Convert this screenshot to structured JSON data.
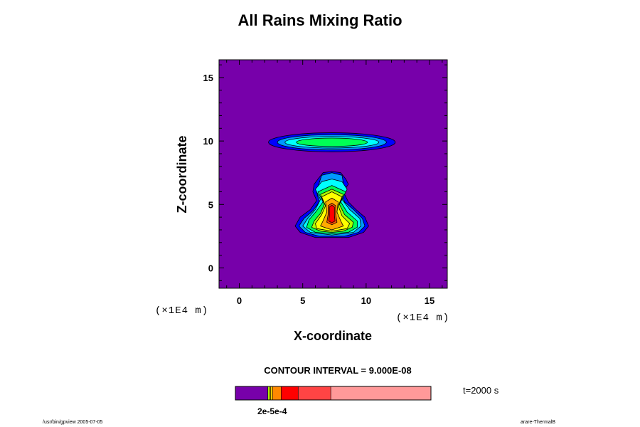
{
  "title": "All Rains Mixing Ratio",
  "chart_data": {
    "type": "heatmap",
    "title": "All Rains Mixing Ratio",
    "xlabel": "X-coordinate",
    "ylabel": "Z-coordinate",
    "x_unit": "(×1E4 m)",
    "z_unit": "(×1E4 m)",
    "xlim": [
      -1.6,
      16.4
    ],
    "ylim": [
      -1.6,
      16.4
    ],
    "x_ticks": [
      0,
      5,
      10,
      15
    ],
    "y_ticks": [
      0,
      5,
      10,
      15
    ],
    "contour_interval": "CONTOUR INTERVAL = 9.000E-08",
    "time": "t=2000 s",
    "colorbar_tick_label": "2e-5e-4",
    "background_color": "#7700aa",
    "levels": [
      "#7700aa",
      "#0000ff",
      "#0099ff",
      "#00ffff",
      "#00ff55",
      "#aaff00",
      "#ffff00",
      "#ffaa00",
      "#ff5500",
      "#ff0000"
    ],
    "features": [
      {
        "name": "upper cloud",
        "center": [
          7.3,
          9.9
        ],
        "levels": [
          {
            "color": "#0000ff",
            "rx": 5.0,
            "rz": 0.75
          },
          {
            "color": "#0099ff",
            "rx": 4.3,
            "rz": 0.6
          },
          {
            "color": "#00ffff",
            "rx": 3.7,
            "rz": 0.45
          },
          {
            "color": "#00ff55",
            "rx": 2.8,
            "rz": 0.33
          }
        ]
      },
      {
        "name": "lower rain column",
        "center": [
          7.3,
          5.0
        ],
        "levels": [
          {
            "color": "#0000ff",
            "points": [
              [
                6.2,
                7.0
              ],
              [
                6.6,
                7.5
              ],
              [
                7.3,
                7.6
              ],
              [
                8.0,
                7.5
              ],
              [
                8.4,
                7.0
              ],
              [
                8.6,
                6.6
              ],
              [
                8.2,
                6.0
              ],
              [
                8.6,
                5.2
              ],
              [
                9.2,
                4.6
              ],
              [
                9.9,
                4.0
              ],
              [
                10.2,
                3.3
              ],
              [
                9.8,
                2.8
              ],
              [
                8.6,
                2.4
              ],
              [
                6.0,
                2.4
              ],
              [
                4.8,
                2.8
              ],
              [
                4.4,
                3.3
              ],
              [
                4.8,
                4.0
              ],
              [
                5.6,
                4.6
              ],
              [
                6.1,
                5.3
              ],
              [
                5.8,
                6.0
              ],
              [
                5.9,
                6.6
              ]
            ]
          },
          {
            "color": "#0099ff",
            "points": [
              [
                6.5,
                7.3
              ],
              [
                7.3,
                7.5
              ],
              [
                8.1,
                7.3
              ],
              [
                8.2,
                6.7
              ],
              [
                8.0,
                6.0
              ],
              [
                8.3,
                5.2
              ],
              [
                9.0,
                4.6
              ],
              [
                9.7,
                3.9
              ],
              [
                9.9,
                3.3
              ],
              [
                9.4,
                2.8
              ],
              [
                8.3,
                2.5
              ],
              [
                6.3,
                2.5
              ],
              [
                5.2,
                2.8
              ],
              [
                4.7,
                3.3
              ],
              [
                5.1,
                3.9
              ],
              [
                5.8,
                4.5
              ],
              [
                6.3,
                5.2
              ],
              [
                6.1,
                6.0
              ],
              [
                6.3,
                6.7
              ]
            ]
          },
          {
            "color": "#00ffff",
            "points": [
              [
                6.0,
                6.2
              ],
              [
                6.5,
                6.8
              ],
              [
                7.3,
                7.0
              ],
              [
                8.1,
                6.8
              ],
              [
                8.5,
                6.2
              ],
              [
                8.1,
                5.4
              ],
              [
                8.7,
                4.6
              ],
              [
                9.5,
                3.9
              ],
              [
                9.6,
                3.3
              ],
              [
                9.0,
                2.8
              ],
              [
                7.3,
                2.6
              ],
              [
                5.6,
                2.8
              ],
              [
                5.0,
                3.3
              ],
              [
                5.4,
                3.9
              ],
              [
                6.0,
                4.6
              ],
              [
                6.4,
                5.4
              ]
            ]
          },
          {
            "color": "#00ff55",
            "points": [
              [
                6.2,
                6.0
              ],
              [
                7.3,
                6.5
              ],
              [
                8.4,
                6.0
              ],
              [
                8.0,
                5.2
              ],
              [
                8.5,
                4.4
              ],
              [
                9.3,
                3.7
              ],
              [
                9.3,
                3.2
              ],
              [
                8.6,
                2.8
              ],
              [
                7.3,
                2.7
              ],
              [
                6.0,
                2.8
              ],
              [
                5.3,
                3.2
              ],
              [
                5.5,
                3.8
              ],
              [
                6.1,
                4.5
              ],
              [
                6.6,
                5.2
              ]
            ]
          },
          {
            "color": "#aaff00",
            "points": [
              [
                6.4,
                5.8
              ],
              [
                7.3,
                6.2
              ],
              [
                8.2,
                5.8
              ],
              [
                7.9,
                5.0
              ],
              [
                8.3,
                4.2
              ],
              [
                9.0,
                3.6
              ],
              [
                8.9,
                3.2
              ],
              [
                8.2,
                2.9
              ],
              [
                7.3,
                2.8
              ],
              [
                6.4,
                2.9
              ],
              [
                5.7,
                3.2
              ],
              [
                5.9,
                3.7
              ],
              [
                6.4,
                4.3
              ],
              [
                6.7,
                5.0
              ]
            ]
          },
          {
            "color": "#ffff00",
            "points": [
              [
                6.5,
                5.6
              ],
              [
                7.3,
                6.0
              ],
              [
                8.1,
                5.6
              ],
              [
                7.8,
                4.9
              ],
              [
                8.1,
                4.1
              ],
              [
                8.7,
                3.5
              ],
              [
                8.5,
                3.1
              ],
              [
                7.3,
                2.9
              ],
              [
                6.1,
                3.1
              ],
              [
                6.0,
                3.5
              ],
              [
                6.5,
                4.2
              ],
              [
                6.8,
                4.9
              ]
            ]
          },
          {
            "color": "#ffaa00",
            "points": [
              [
                6.8,
                5.2
              ],
              [
                7.3,
                5.5
              ],
              [
                7.8,
                5.2
              ],
              [
                7.7,
                4.4
              ],
              [
                8.0,
                3.7
              ],
              [
                8.2,
                3.3
              ],
              [
                7.3,
                3.0
              ],
              [
                6.4,
                3.3
              ],
              [
                6.6,
                3.7
              ],
              [
                6.9,
                4.4
              ]
            ]
          },
          {
            "color": "#ff5500",
            "points": [
              [
                7.0,
                4.9
              ],
              [
                7.3,
                5.1
              ],
              [
                7.6,
                4.9
              ],
              [
                7.6,
                4.2
              ],
              [
                7.7,
                3.6
              ],
              [
                7.3,
                3.4
              ],
              [
                6.9,
                3.6
              ],
              [
                7.0,
                4.2
              ]
            ]
          },
          {
            "color": "#ff0000",
            "points": [
              [
                7.1,
                4.8
              ],
              [
                7.3,
                4.95
              ],
              [
                7.5,
                4.8
              ],
              [
                7.5,
                4.1
              ],
              [
                7.55,
                3.7
              ],
              [
                7.3,
                3.55
              ],
              [
                7.05,
                3.7
              ],
              [
                7.1,
                4.1
              ]
            ]
          }
        ]
      }
    ],
    "colorbar": [
      {
        "color": "#7700aa",
        "fraction": 0.166
      },
      {
        "color": "#aaff00",
        "fraction": 0.007
      },
      {
        "color": "#ffff00",
        "fraction": 0.007
      },
      {
        "color": "#ffcc00",
        "fraction": 0.01
      },
      {
        "color": "#ff8800",
        "fraction": 0.044
      },
      {
        "color": "#ff0000",
        "fraction": 0.087
      },
      {
        "color": "#ff4444",
        "fraction": 0.167
      },
      {
        "color": "#ff9999",
        "fraction": 0.512
      }
    ]
  },
  "footer": {
    "left": "/usr/bin/gpview 2005-07-05",
    "right": "arare-ThermalB"
  }
}
